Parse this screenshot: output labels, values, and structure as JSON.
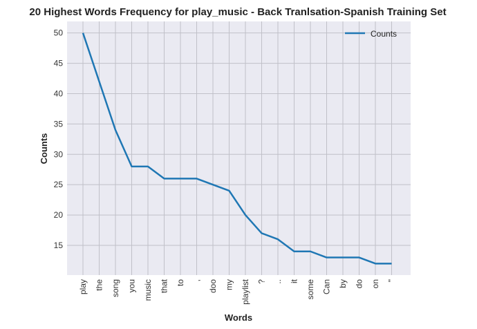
{
  "chart_data": {
    "type": "line",
    "title": "20 Highest Words Frequency for play_music - Back Tranlsation-Spanish Training Set",
    "xlabel": "Words",
    "ylabel": "Counts",
    "categories": [
      "play",
      "the",
      "song",
      "you",
      "music",
      "that",
      "to",
      ",",
      "doo",
      "my",
      "playlist",
      "?",
      "..",
      "it",
      "some",
      "Can",
      "by",
      "do",
      "on",
      "\""
    ],
    "series": [
      {
        "name": "Counts",
        "color": "#1f77b4",
        "values": [
          50,
          42,
          34,
          28,
          28,
          26,
          26,
          26,
          25,
          24,
          20,
          17,
          16,
          14,
          14,
          13,
          13,
          13,
          12,
          12
        ]
      }
    ],
    "yticks": [
      15,
      20,
      25,
      30,
      35,
      40,
      45,
      50
    ],
    "ylim": [
      10.1,
      51.9
    ],
    "grid": true,
    "legend": "top-right",
    "colors": {
      "plot_bg": "#eaeaf2",
      "grid": "#c0c0c8"
    }
  }
}
